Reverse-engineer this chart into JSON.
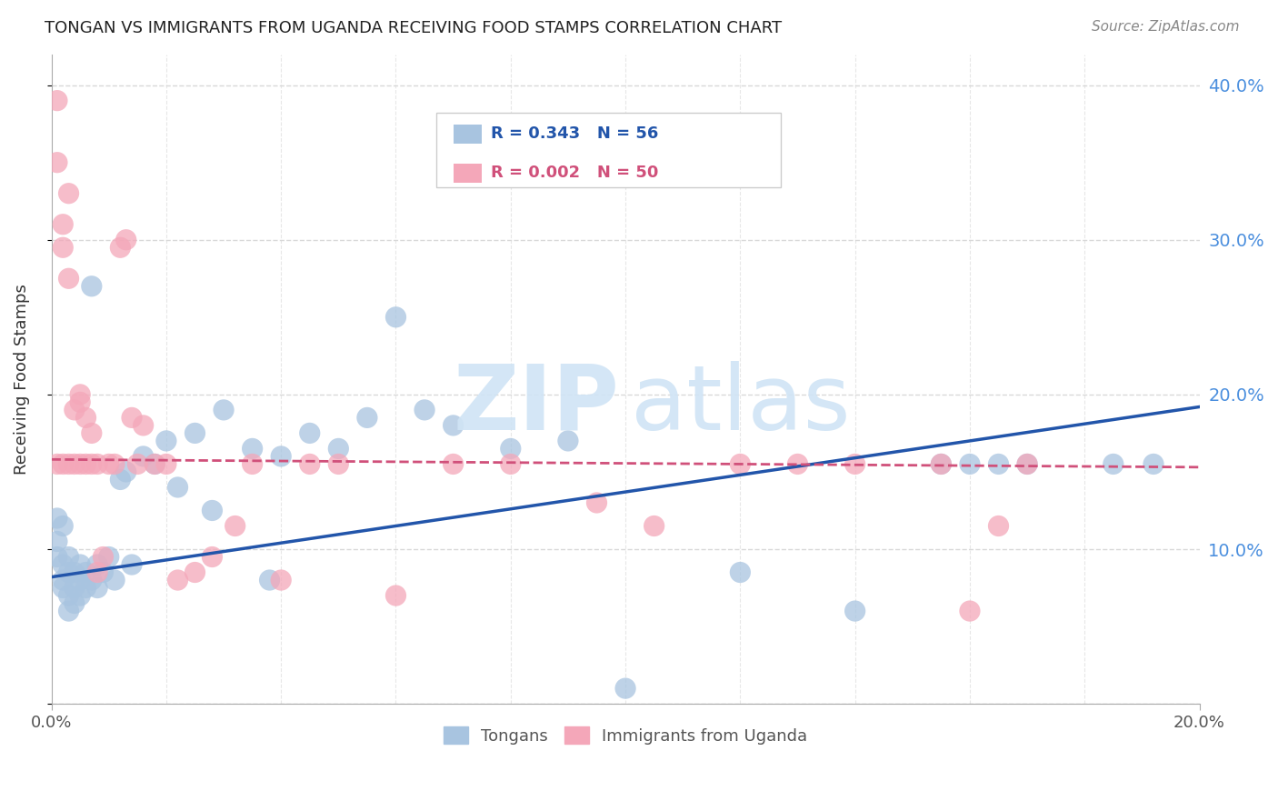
{
  "title": "TONGAN VS IMMIGRANTS FROM UGANDA RECEIVING FOOD STAMPS CORRELATION CHART",
  "source": "Source: ZipAtlas.com",
  "ylabel": "Receiving Food Stamps",
  "xlim": [
    0.0,
    0.2
  ],
  "ylim": [
    0.0,
    0.42
  ],
  "yticks": [
    0.0,
    0.1,
    0.2,
    0.3,
    0.4
  ],
  "right_ytick_labels": [
    "",
    "10.0%",
    "20.0%",
    "30.0%",
    "40.0%"
  ],
  "right_ytick_color": "#4b8fde",
  "background_color": "#ffffff",
  "grid_color": "#d8d8d8",
  "tongan_color": "#a8c4e0",
  "uganda_color": "#f4a7b9",
  "tongan_line_color": "#2255aa",
  "uganda_line_color": "#d0507a",
  "R_tongan": 0.343,
  "N_tongan": 56,
  "R_uganda": 0.002,
  "N_uganda": 50,
  "tongan_x": [
    0.001,
    0.001,
    0.001,
    0.002,
    0.002,
    0.002,
    0.002,
    0.003,
    0.003,
    0.003,
    0.003,
    0.004,
    0.004,
    0.004,
    0.005,
    0.005,
    0.005,
    0.006,
    0.006,
    0.007,
    0.007,
    0.008,
    0.008,
    0.009,
    0.01,
    0.011,
    0.012,
    0.013,
    0.014,
    0.016,
    0.018,
    0.02,
    0.022,
    0.025,
    0.028,
    0.03,
    0.035,
    0.038,
    0.04,
    0.045,
    0.05,
    0.055,
    0.06,
    0.065,
    0.07,
    0.08,
    0.09,
    0.1,
    0.12,
    0.14,
    0.155,
    0.16,
    0.165,
    0.17,
    0.185,
    0.192
  ],
  "tongan_y": [
    0.12,
    0.095,
    0.105,
    0.115,
    0.09,
    0.08,
    0.075,
    0.085,
    0.095,
    0.07,
    0.06,
    0.085,
    0.075,
    0.065,
    0.08,
    0.07,
    0.09,
    0.085,
    0.075,
    0.27,
    0.08,
    0.09,
    0.075,
    0.085,
    0.095,
    0.08,
    0.145,
    0.15,
    0.09,
    0.16,
    0.155,
    0.17,
    0.14,
    0.175,
    0.125,
    0.19,
    0.165,
    0.08,
    0.16,
    0.175,
    0.165,
    0.185,
    0.25,
    0.19,
    0.18,
    0.165,
    0.17,
    0.01,
    0.085,
    0.06,
    0.155,
    0.155,
    0.155,
    0.155,
    0.155,
    0.155
  ],
  "uganda_x": [
    0.001,
    0.001,
    0.001,
    0.002,
    0.002,
    0.002,
    0.003,
    0.003,
    0.003,
    0.004,
    0.004,
    0.005,
    0.005,
    0.005,
    0.006,
    0.006,
    0.007,
    0.007,
    0.008,
    0.008,
    0.009,
    0.01,
    0.011,
    0.012,
    0.013,
    0.014,
    0.015,
    0.016,
    0.018,
    0.02,
    0.022,
    0.025,
    0.028,
    0.032,
    0.035,
    0.04,
    0.045,
    0.05,
    0.06,
    0.07,
    0.08,
    0.095,
    0.105,
    0.12,
    0.13,
    0.14,
    0.155,
    0.16,
    0.165,
    0.17
  ],
  "uganda_y": [
    0.39,
    0.35,
    0.155,
    0.295,
    0.31,
    0.155,
    0.33,
    0.275,
    0.155,
    0.19,
    0.155,
    0.2,
    0.195,
    0.155,
    0.185,
    0.155,
    0.175,
    0.155,
    0.085,
    0.155,
    0.095,
    0.155,
    0.155,
    0.295,
    0.3,
    0.185,
    0.155,
    0.18,
    0.155,
    0.155,
    0.08,
    0.085,
    0.095,
    0.115,
    0.155,
    0.08,
    0.155,
    0.155,
    0.07,
    0.155,
    0.155,
    0.13,
    0.115,
    0.155,
    0.155,
    0.155,
    0.155,
    0.06,
    0.115,
    0.155
  ],
  "tongan_line_x0": 0.0,
  "tongan_line_y0": 0.082,
  "tongan_line_x1": 0.2,
  "tongan_line_y1": 0.192,
  "uganda_line_x0": 0.0,
  "uganda_line_y0": 0.158,
  "uganda_line_x1": 0.2,
  "uganda_line_y1": 0.153
}
